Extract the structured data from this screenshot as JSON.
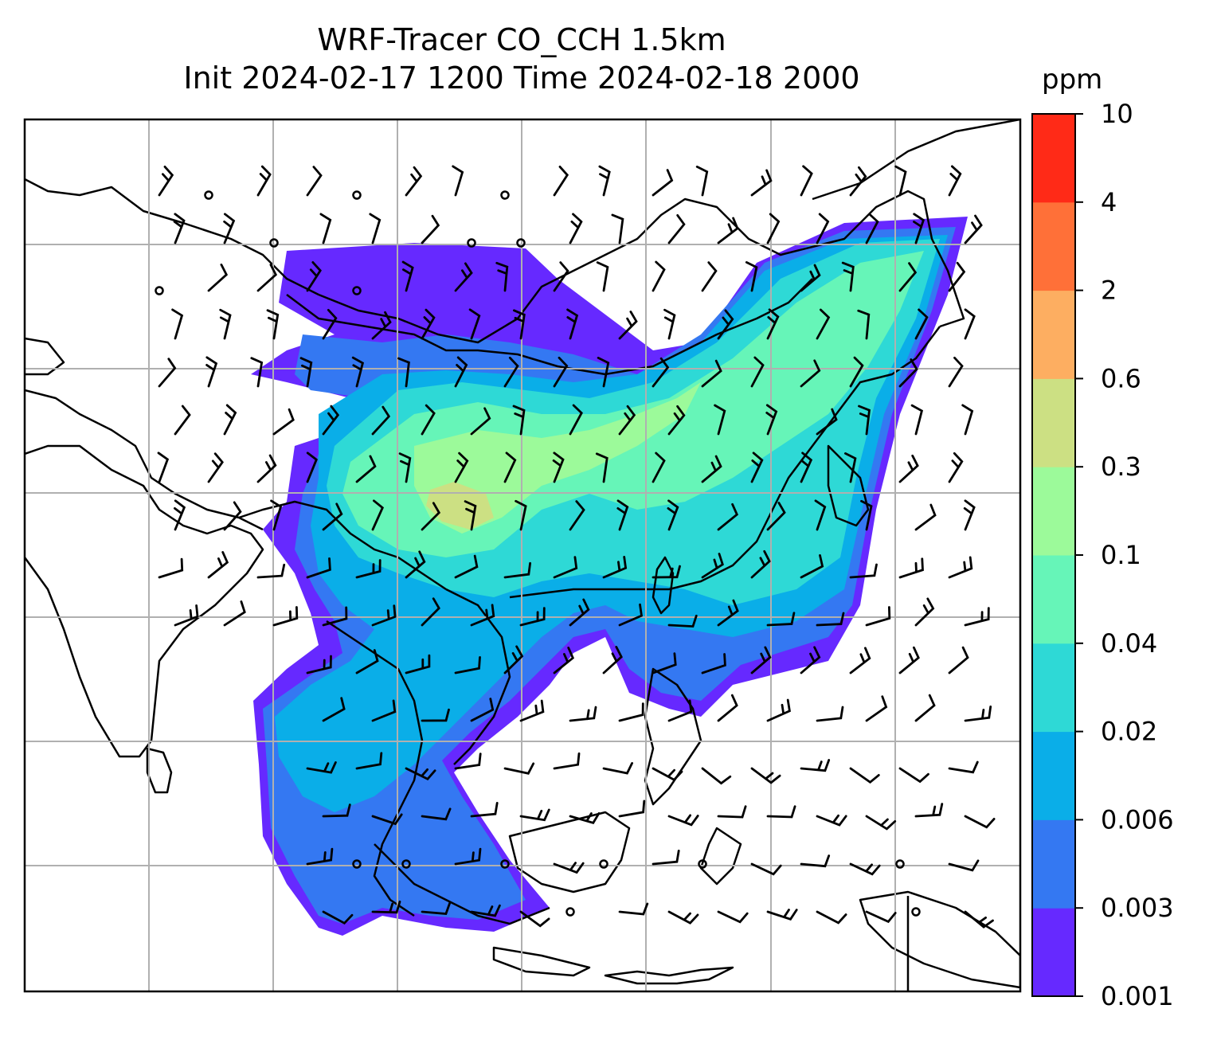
{
  "title": {
    "line1": "WRF-Tracer CO_CCH 1.5km",
    "line2": "Init 2024-02-17 1200 Time 2024-02-18 2000"
  },
  "colorbar": {
    "unit": "ppm",
    "levels": [
      "0.001",
      "0.003",
      "0.006",
      "0.02",
      "0.04",
      "0.1",
      "0.3",
      "0.6",
      "2",
      "4",
      "10"
    ],
    "colors": [
      "#6629ff",
      "#3478f2",
      "#0aaee8",
      "#2ed9d6",
      "#66f5b8",
      "#9cfa9a",
      "#cce083",
      "#fdae61",
      "#ff7038",
      "#ff2a17"
    ]
  },
  "map": {
    "coastline_color": "#000000",
    "gridline_color": "#b0b0b0",
    "wind_barb_color": "#000000",
    "field": "CO_CCH tracer concentration at 1.5km with wind barbs"
  }
}
